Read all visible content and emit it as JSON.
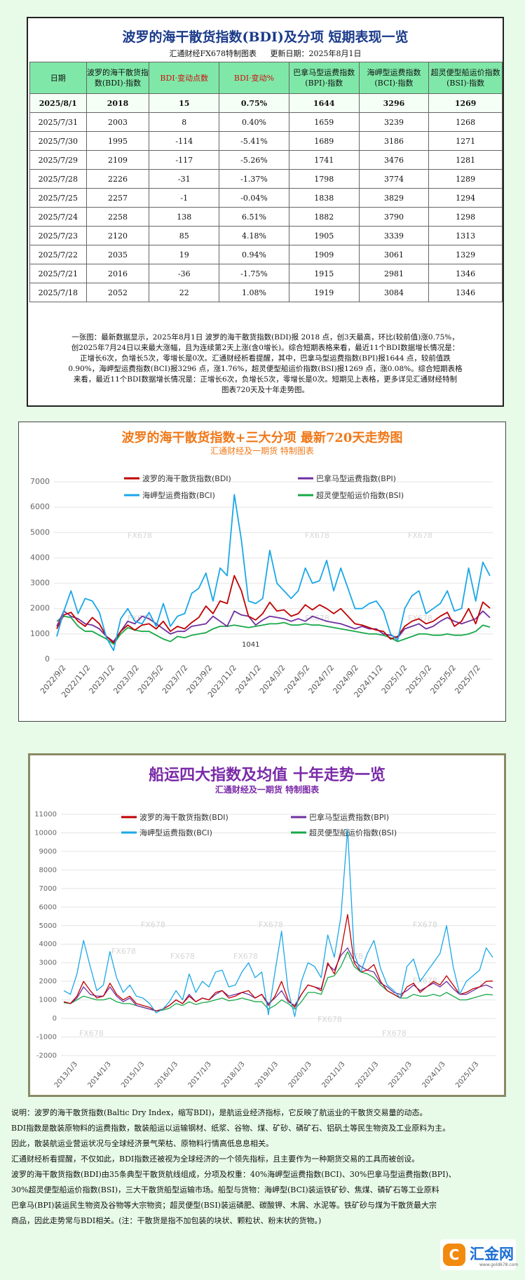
{
  "summary": {
    "title": "波罗的海干散货指数(BDI)及分项  短期表现一览",
    "maker": "汇通财经FX678特制图表",
    "updated": "更新日期：2025年8月1日",
    "headers": [
      "日期",
      "波罗的海干散货指数(BDI)·指数",
      "BDI·变动点数",
      "BDI·变动%",
      "巴拿马型运费指数(BPI)·指数",
      "海岬型运费指数(BCI)·指数",
      "超灵便型船运价指数(BSI)·指数"
    ],
    "rows": [
      [
        "2025/8/1",
        "2018",
        "15",
        "0.75%",
        "1644",
        "3296",
        "1269"
      ],
      [
        "2025/7/31",
        "2003",
        "8",
        "0.40%",
        "1659",
        "3239",
        "1268"
      ],
      [
        "2025/7/30",
        "1995",
        "-114",
        "-5.41%",
        "1689",
        "3186",
        "1271"
      ],
      [
        "2025/7/29",
        "2109",
        "-117",
        "-5.26%",
        "1741",
        "3476",
        "1281"
      ],
      [
        "2025/7/28",
        "2226",
        "-31",
        "-1.37%",
        "1798",
        "3774",
        "1289"
      ],
      [
        "2025/7/25",
        "2257",
        "-1",
        "-0.04%",
        "1838",
        "3829",
        "1294"
      ],
      [
        "2025/7/24",
        "2258",
        "138",
        "6.51%",
        "1882",
        "3790",
        "1298"
      ],
      [
        "2025/7/23",
        "2120",
        "85",
        "4.18%",
        "1905",
        "3339",
        "1313"
      ],
      [
        "2025/7/22",
        "2035",
        "19",
        "0.94%",
        "1909",
        "3061",
        "1329"
      ],
      [
        "2025/7/21",
        "2016",
        "-36",
        "-1.75%",
        "1915",
        "2981",
        "1346"
      ],
      [
        "2025/7/18",
        "2052",
        "22",
        "1.08%",
        "1919",
        "3084",
        "1346"
      ]
    ],
    "commentary": [
      "一张图：最新数据显示，2025年8月1日 波罗的海干散货指数(BDI)报 2018 点，创3天最高，环比(较前值)涨0.75%，",
      "创2025年7月24日以来最大涨幅，且为连续第2天上涨(含0增长)。综合短期表格来看，最近11个BDI数据增长情况是：",
      "正增长6次，负增长5次，零增长是0次。汇通财经析看提醒，其中，巴拿马型运费指数(BPI)报1644 点，较前值跌",
      "0.90%，海岬型运费指数(BCI)报3296 点，涨1.76%，超灵便型船运价指数(BSI)报1269 点，涨0.08%。综合短期表格",
      "来看，最近11个BDI数据增长情况是：正增长6次，负增长5次，零增长是0次。短期见上表格，更多详见汇通财经特制",
      "图表720天及十年走势图。"
    ]
  },
  "chart_data": [
    {
      "type": "line",
      "title": "波罗的海干散货指数+三大分项  最新720天走势图",
      "subtitle": "汇通财经及一期货  特制图表",
      "ylim": [
        0,
        7000
      ],
      "y_ticks": [
        "0",
        "1000",
        "2000",
        "3000",
        "4000",
        "5000",
        "6000",
        "7000"
      ],
      "x_ticks": [
        "2022/9/2",
        "2022/11/2",
        "2023/1/2",
        "2023/3/2",
        "2023/5/2",
        "2023/7/2",
        "2023/9/2",
        "2023/11/2",
        "2024/1/2",
        "2024/3/2",
        "2024/5/2",
        "2024/7/2",
        "2024/9/2",
        "2024/11/2",
        "2025/1/2",
        "2025/3/2",
        "2025/5/2",
        "2025/7/2"
      ],
      "annotation": "1041",
      "watermark": "FX678",
      "colors": {
        "BDI": "#c00000",
        "BPI": "#7030a0",
        "BCI": "#1aa7e8",
        "BSI": "#18a848"
      },
      "legend": [
        "波罗的海干散货指数(BDI)",
        "巴拿马型运费指数(BPI)",
        "海岬型运费指数(BCI)",
        "超灵便型船运价指数(BSI)"
      ],
      "series": [
        {
          "name": "波罗的海干散货指数(BDI)",
          "values": [
            1200,
            1750,
            1850,
            1500,
            1300,
            1650,
            1400,
            900,
            650,
            1100,
            1350,
            1150,
            1350,
            1400,
            1200,
            1500,
            1100,
            1300,
            1200,
            1450,
            1650,
            2100,
            1800,
            2300,
            2200,
            3300,
            2700,
            1700,
            1550,
            1800,
            2250,
            1900,
            1950,
            1700,
            1800,
            2150,
            1950,
            2150,
            2000,
            1800,
            2000,
            1700,
            1400,
            1350,
            1250,
            1150,
            1100,
            800,
            900,
            1300,
            1500,
            1600,
            1400,
            1500,
            1700,
            1850,
            1300,
            1500,
            2000,
            1400,
            2258,
            2018
          ]
        },
        {
          "name": "巴拿马型运费指数(BPI)",
          "values": [
            1300,
            1900,
            1700,
            1600,
            1400,
            1350,
            1200,
            900,
            700,
            1100,
            1500,
            1400,
            1700,
            1600,
            1400,
            1200,
            1000,
            1100,
            1100,
            1300,
            1350,
            1400,
            1700,
            1500,
            1300,
            1900,
            1750,
            1700,
            1350,
            1550,
            1700,
            1650,
            1600,
            1500,
            1600,
            1500,
            1700,
            1600,
            1500,
            1450,
            1400,
            1300,
            1200,
            1300,
            1200,
            1200,
            1000,
            950,
            850,
            1200,
            1300,
            1400,
            1200,
            1300,
            1500,
            1650,
            1500,
            1400,
            1500,
            1600,
            1900,
            1644
          ]
        },
        {
          "name": "海岬型运费指数(BCI)",
          "values": [
            900,
            1900,
            2700,
            1800,
            2400,
            2300,
            1850,
            850,
            350,
            1600,
            2000,
            1500,
            1400,
            1850,
            1300,
            2200,
            1300,
            1700,
            1800,
            2600,
            2800,
            3400,
            2300,
            3600,
            3300,
            6500,
            4700,
            2300,
            2200,
            2400,
            4300,
            3000,
            2700,
            2400,
            2700,
            3600,
            3000,
            3100,
            3900,
            2700,
            3600,
            2800,
            2000,
            2000,
            2200,
            2300,
            1900,
            1000,
            750,
            2000,
            2500,
            2700,
            1800,
            2000,
            2200,
            2700,
            1900,
            2000,
            3600,
            2300,
            3829,
            3296
          ]
        },
        {
          "name": "超灵便型船运价指数(BSI)",
          "values": [
            1500,
            1700,
            1650,
            1300,
            1100,
            1100,
            950,
            800,
            600,
            1000,
            1250,
            1150,
            1100,
            1100,
            950,
            800,
            700,
            900,
            850,
            950,
            1000,
            1050,
            1200,
            1300,
            1300,
            1350,
            1300,
            1250,
            1300,
            1350,
            1400,
            1400,
            1450,
            1350,
            1350,
            1400,
            1350,
            1350,
            1300,
            1250,
            1200,
            1150,
            1100,
            1050,
            1000,
            1000,
            950,
            850,
            700,
            800,
            900,
            1000,
            1000,
            950,
            950,
            1000,
            950,
            950,
            1000,
            1100,
            1346,
            1269
          ]
        }
      ]
    },
    {
      "type": "line",
      "title": "船运四大指数及均值 十年走势一览",
      "subtitle": "汇通财经及一期货 特制图表",
      "ylim": [
        -2000,
        11000
      ],
      "y_ticks": [
        "-2000",
        "-1000",
        "0",
        "1000",
        "2000",
        "3000",
        "4000",
        "5000",
        "6000",
        "7000",
        "8000",
        "9000",
        "10000",
        "11000"
      ],
      "x_ticks": [
        "2013/1/3",
        "2014/1/3",
        "2015/1/3",
        "2016/1/3",
        "2017/1/3",
        "2018/1/3",
        "2019/1/3",
        "2020/1/3",
        "2021/1/3",
        "2022/1/3",
        "2023/1/3",
        "2024/1/3",
        "2025/1/3"
      ],
      "watermark": "FX678",
      "colors": {
        "BDI": "#c00000",
        "BPI": "#7030a0",
        "BCI": "#1aa7e8",
        "BSI": "#18a848"
      },
      "legend": [
        "波罗的海干散货指数(BDI)",
        "巴拿马型运费指数(BPI)",
        "海岬型运费指数(BCI)",
        "超灵便型船运价指数(BSI)"
      ],
      "series": [
        {
          "name": "波罗的海干散货指数(BDI)",
          "values": [
            900,
            800,
            1200,
            2000,
            1500,
            1100,
            1200,
            1900,
            1300,
            1000,
            1200,
            800,
            700,
            600,
            400,
            500,
            700,
            1000,
            800,
            1200,
            900,
            1100,
            1000,
            1400,
            1500,
            1100,
            1200,
            1400,
            1500,
            1100,
            1300,
            700,
            1200,
            2000,
            1000,
            600,
            1300,
            1800,
            1700,
            1500,
            3000,
            2400,
            3600,
            5600,
            3000,
            2500,
            2600,
            2900,
            2000,
            1500,
            1300,
            1100,
            1700,
            1900,
            1400,
            1700,
            2000,
            1800,
            2300,
            1800,
            1300,
            1400,
            1600,
            1700,
            2000,
            2018
          ]
        },
        {
          "name": "巴拿马型运费指数(BPI)",
          "values": [
            900,
            800,
            1100,
            1700,
            1300,
            1200,
            1200,
            1700,
            1200,
            900,
            1100,
            700,
            600,
            500,
            400,
            500,
            700,
            1000,
            800,
            1300,
            900,
            1100,
            1000,
            1300,
            1500,
            1200,
            1300,
            1400,
            1300,
            1100,
            1300,
            800,
            1100,
            1500,
            900,
            700,
            1300,
            1800,
            1700,
            1600,
            2900,
            2600,
            3400,
            3800,
            3100,
            2800,
            2600,
            2500,
            1900,
            1700,
            1400,
            1300,
            1500,
            1800,
            1500,
            1700,
            1900,
            1700,
            2000,
            1600,
            1300,
            1300,
            1500,
            1700,
            1800,
            1644
          ]
        },
        {
          "name": "海岬型运费指数(BCI)",
          "values": [
            1500,
            1300,
            2400,
            4200,
            2800,
            1500,
            1800,
            3600,
            2200,
            1400,
            1800,
            1200,
            1100,
            800,
            300,
            500,
            900,
            1500,
            1000,
            2400,
            1400,
            2000,
            1700,
            2500,
            2600,
            1700,
            1800,
            2500,
            3000,
            2200,
            2500,
            200,
            2500,
            4700,
            1500,
            100,
            2000,
            3000,
            2800,
            2200,
            4500,
            3300,
            5500,
            10200,
            3500,
            2500,
            3500,
            4200,
            2700,
            1800,
            1500,
            1100,
            2800,
            3200,
            2000,
            2500,
            3000,
            3500,
            5000,
            2800,
            1300,
            2000,
            2300,
            2600,
            3800,
            3296
          ]
        },
        {
          "name": "超灵便型船运价指数(BSI)",
          "values": [
            850,
            800,
            1000,
            1200,
            1100,
            1000,
            1000,
            1100,
            900,
            800,
            800,
            700,
            600,
            500,
            400,
            450,
            550,
            800,
            700,
            900,
            750,
            850,
            900,
            1000,
            1100,
            950,
            1000,
            1100,
            1000,
            900,
            900,
            500,
            700,
            1000,
            800,
            500,
            900,
            1400,
            1400,
            1300,
            2200,
            2300,
            2800,
            3600,
            2800,
            2500,
            2400,
            2200,
            1800,
            1500,
            1300,
            1100,
            1100,
            1300,
            1200,
            1200,
            1300,
            1200,
            1400,
            1200,
            1000,
            1000,
            1100,
            1200,
            1300,
            1269
          ]
        }
      ]
    }
  ],
  "notes": [
    "说明：波罗的海干散货指数(Baltic Dry Index，缩写BDI)，是航运业经济指标，它反映了航运业的干散货交易量的动态。",
    "BDI指数是散装原物料的运费指数，散装船运以运输钢材、纸浆、谷物、煤、矿砂、磷矿石、铝矾土等民生物资及工业原料为主。",
    "因此，散装航运业营运状况与全球经济景气荣枯、原物料行情高低息息相关。",
    "汇通财经析看提醒，不仅如此，BDI指数还被视为全球经济的一个领先指标，且主要作为一种期货交易的工具而被创设。",
    "波罗的海干散货指数(BDI)由35条典型干散货航线组成，分项及权重：40%海岬型运费指数(BCI)、30%巴拿马型运费指数(BPI)、",
    "30%超灵便型船运价指数(BSI)，三大干散货船型运输市场。船型与货物：海岬型(BCI)装运铁矿砂、焦煤、磷矿石等工业原料",
    "巴拿马(BPI)装运民生物资及谷物等大宗物资；超灵便型(BSI)装运磷肥、碳酸钾、木屑、水泥等。铁矿砂与煤为干散货最大宗",
    "商品，因此走势常与BDI相关。(注：干散货是指不加包装的块状、颗粒状、粉末状的货物。)"
  ],
  "brand": {
    "name": "汇金网",
    "url": "www.gold678.com",
    "mark": "C"
  }
}
